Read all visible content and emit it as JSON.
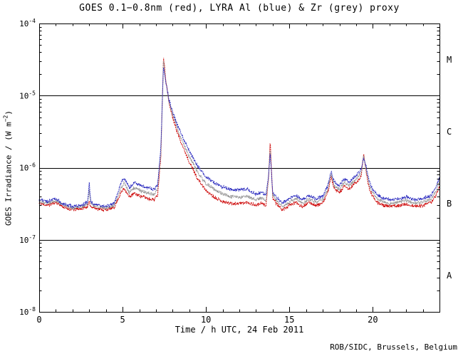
{
  "chart_data": {
    "type": "line",
    "title": "GOES 0.1−0.8nm (red), LYRA Al (blue) & Zr (grey) proxy",
    "xlabel": "Time / h UTC, 24 Feb 2011",
    "ylabel_parts": [
      "GOES Irradiance / (W m",
      "−2",
      ")"
    ],
    "credit": "ROB/SIDC, Brussels, Belgium",
    "class_labels": [
      "M",
      "C",
      "B",
      "A"
    ],
    "x_range": [
      0,
      24
    ],
    "y_log_range": [
      -8,
      -4
    ],
    "x_major_ticks": [
      0,
      5,
      10,
      15,
      20
    ],
    "x_tick_labels": [
      "0",
      "5",
      "10",
      "15",
      "20"
    ],
    "x_minor_step": 1,
    "y_tick_base": "10",
    "y_tick_exponents": [
      "-8",
      "-7",
      "-6",
      "-5",
      "-4"
    ],
    "hlines": [
      1e-05,
      1e-06,
      1e-07
    ],
    "grid": false,
    "legend": "none (encoded in title)",
    "sample_step": 0.02,
    "noise_seed": 11,
    "noise_sigma": 0.022,
    "x": [
      0,
      0.5,
      1,
      1.5,
      2,
      2.5,
      2.9,
      3.0,
      3.1,
      3.5,
      4.0,
      4.5,
      4.9,
      5.1,
      5.4,
      5.7,
      6.0,
      6.3,
      6.6,
      6.9,
      7.1,
      7.3,
      7.45,
      7.6,
      7.8,
      8.0,
      8.3,
      8.6,
      9.0,
      9.5,
      10.0,
      10.5,
      11.0,
      11.5,
      12.0,
      12.5,
      13.0,
      13.3,
      13.6,
      13.75,
      13.85,
      14.0,
      14.3,
      14.6,
      15.0,
      15.4,
      15.8,
      16.2,
      16.6,
      17.0,
      17.3,
      17.5,
      17.7,
      18.0,
      18.3,
      18.6,
      18.9,
      19.1,
      19.3,
      19.45,
      19.6,
      19.8,
      20.0,
      20.3,
      20.6,
      21.0,
      21.5,
      22.0,
      22.5,
      23.0,
      23.5,
      23.8,
      24.0
    ],
    "series": [
      {
        "name": "GOES 0.1-0.8nm",
        "slug": "goes-red",
        "color": "#cc0000",
        "y": [
          3.2e-07,
          3e-07,
          3.3e-07,
          2.8e-07,
          2.6e-07,
          2.7e-07,
          2.9e-07,
          3.3e-07,
          2.9e-07,
          2.7e-07,
          2.6e-07,
          2.8e-07,
          4.5e-07,
          5.2e-07,
          3.9e-07,
          4.4e-07,
          4.1e-07,
          3.9e-07,
          3.7e-07,
          3.6e-07,
          4.2e-07,
          1.5e-06,
          3.5e-05,
          1.6e-05,
          7.5e-06,
          5e-06,
          3e-06,
          2e-06,
          1.2e-06,
          7e-07,
          4.8e-07,
          3.9e-07,
          3.4e-07,
          3.2e-07,
          3.2e-07,
          3.3e-07,
          3e-07,
          3.2e-07,
          3e-07,
          7e-07,
          2.3e-06,
          3.8e-07,
          3e-07,
          2.6e-07,
          3e-07,
          3.3e-07,
          2.9e-07,
          3.3e-07,
          3e-07,
          3.2e-07,
          4.5e-07,
          7.5e-07,
          5e-07,
          4.5e-07,
          5.5e-07,
          5e-07,
          6e-07,
          6.5e-07,
          7.5e-07,
          1.6e-06,
          8.5e-07,
          5e-07,
          4e-07,
          3.3e-07,
          3e-07,
          2.9e-07,
          3e-07,
          3.1e-07,
          2.9e-07,
          3e-07,
          3.3e-07,
          4.2e-07,
          5.5e-07
        ]
      },
      {
        "name": "LYRA Zr proxy",
        "slug": "lyra-zr-grey",
        "color": "#909090",
        "y": [
          3.4e-07,
          3.2e-07,
          3.5e-07,
          2.95e-07,
          2.75e-07,
          2.85e-07,
          3.1e-07,
          4.8e-07,
          3.1e-07,
          2.85e-07,
          2.75e-07,
          3e-07,
          5.2e-07,
          6.2e-07,
          4.5e-07,
          5.3e-07,
          4.9e-07,
          4.6e-07,
          4.4e-07,
          4.3e-07,
          5e-07,
          1.7e-06,
          3e-05,
          1.55e-05,
          8e-06,
          5.5e-06,
          3.4e-06,
          2.3e-06,
          1.45e-06,
          8.5e-07,
          6e-07,
          5e-07,
          4.3e-07,
          4e-07,
          3.9e-07,
          4e-07,
          3.6e-07,
          3.8e-07,
          3.5e-07,
          7.2e-07,
          1.9e-06,
          4.2e-07,
          3.3e-07,
          2.9e-07,
          3.3e-07,
          3.7e-07,
          3.2e-07,
          3.7e-07,
          3.3e-07,
          3.6e-07,
          5e-07,
          8.1e-07,
          5.6e-07,
          5e-07,
          6.2e-07,
          5.6e-07,
          6.7e-07,
          7.3e-07,
          8.5e-07,
          1.45e-06,
          9.5e-07,
          5.6e-07,
          4.5e-07,
          3.7e-07,
          3.4e-07,
          3.2e-07,
          3.3e-07,
          3.5e-07,
          3.2e-07,
          3.3e-07,
          3.7e-07,
          4.8e-07,
          6.3e-07
        ]
      },
      {
        "name": "LYRA Al proxy",
        "slug": "lyra-al-blue",
        "color": "#2626bd",
        "y": [
          3.6e-07,
          3.4e-07,
          3.7e-07,
          3.1e-07,
          2.9e-07,
          3e-07,
          3.3e-07,
          6e-07,
          3.3e-07,
          3e-07,
          2.9e-07,
          3.2e-07,
          6e-07,
          7.2e-07,
          5.2e-07,
          6.2e-07,
          5.8e-07,
          5.4e-07,
          5.2e-07,
          5e-07,
          5.8e-07,
          2e-06,
          2.6e-05,
          1.5e-05,
          8.5e-06,
          6e-06,
          3.8e-06,
          2.7e-06,
          1.7e-06,
          1.05e-06,
          7.5e-07,
          6.2e-07,
          5.4e-07,
          5e-07,
          4.9e-07,
          5e-07,
          4.3e-07,
          4.5e-07,
          4.2e-07,
          7.5e-07,
          1.6e-06,
          4.6e-07,
          3.7e-07,
          3.3e-07,
          3.7e-07,
          4.1e-07,
          3.6e-07,
          4.1e-07,
          3.7e-07,
          4e-07,
          5.6e-07,
          8.8e-07,
          6.3e-07,
          5.6e-07,
          7e-07,
          6.3e-07,
          7.5e-07,
          8.2e-07,
          9.5e-07,
          1.35e-06,
          1.05e-06,
          6.3e-07,
          5e-07,
          4.2e-07,
          3.8e-07,
          3.6e-07,
          3.7e-07,
          3.9e-07,
          3.6e-07,
          3.7e-07,
          4.1e-07,
          5.5e-07,
          7.2e-07
        ]
      }
    ]
  }
}
